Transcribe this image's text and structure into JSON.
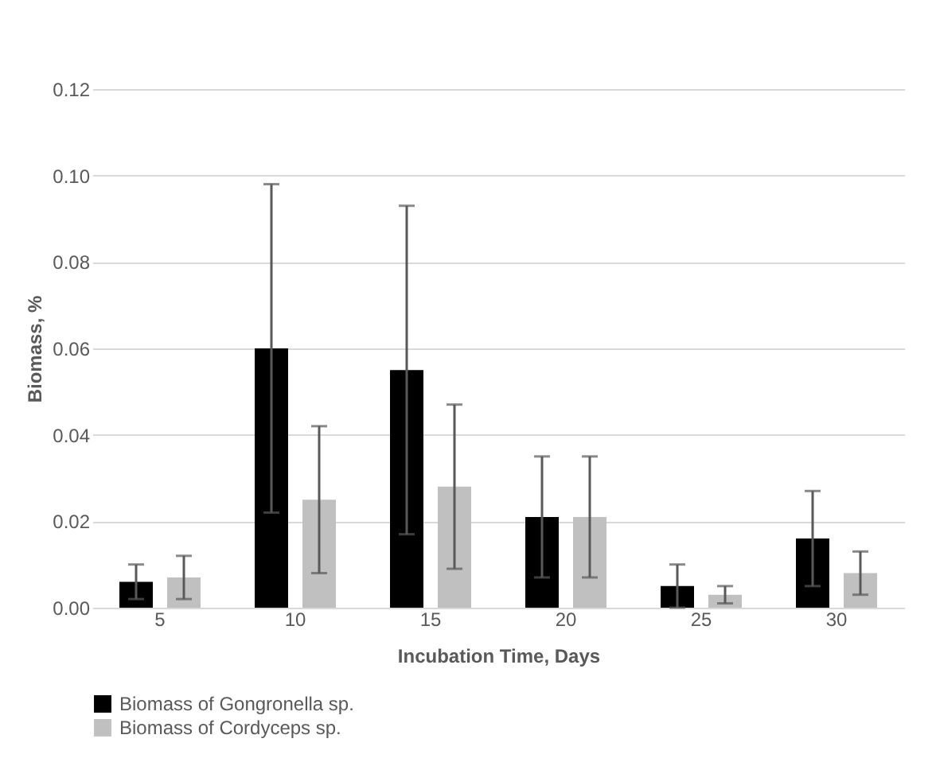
{
  "chart_data": {
    "type": "bar",
    "xlabel": "Incubation Time, Days",
    "ylabel": "Biomass, %",
    "categories": [
      "5",
      "10",
      "15",
      "20",
      "25",
      "30"
    ],
    "series": [
      {
        "name": "Biomass of Gongronella sp.",
        "color": "#000000",
        "values": [
          0.006,
          0.06,
          0.055,
          0.021,
          0.005,
          0.016
        ],
        "errors": [
          0.004,
          0.038,
          0.038,
          0.014,
          0.005,
          0.011
        ]
      },
      {
        "name": "Biomass of Cordyceps sp.",
        "color": "#c0c0c0",
        "values": [
          0.007,
          0.025,
          0.028,
          0.021,
          0.003,
          0.008
        ],
        "errors": [
          0.005,
          0.017,
          0.019,
          0.014,
          0.002,
          0.005
        ]
      }
    ],
    "ylim": [
      0,
      0.12
    ],
    "yticks": [
      {
        "value": 0,
        "label": "0.00"
      },
      0.02,
      0.04,
      0.06,
      0.08,
      {
        "value": 0.1,
        "label": "0.10"
      },
      0.12
    ],
    "grid": "y",
    "legend": "bottom"
  }
}
